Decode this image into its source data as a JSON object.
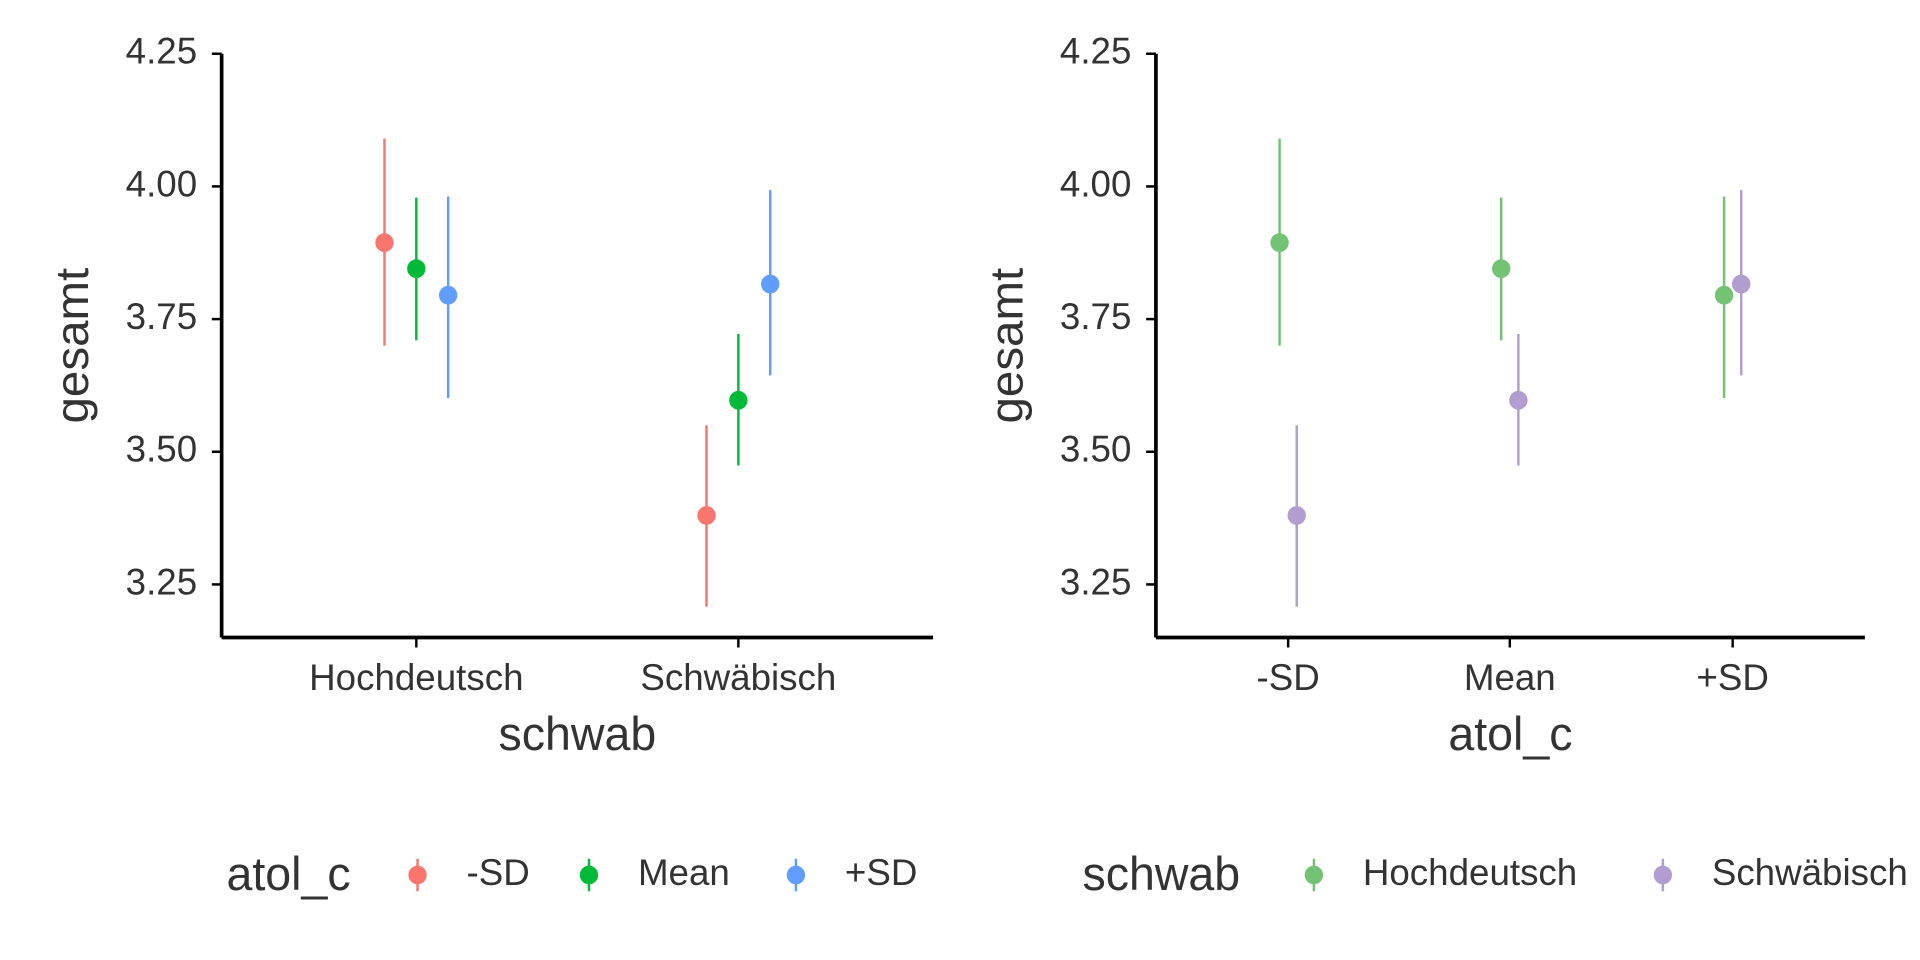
{
  "chart_data": [
    {
      "type": "pointrange",
      "x_label": "schwab",
      "y_label": "gesamt",
      "legend_title": "atol_c",
      "categories": [
        "Hochdeutsch",
        "Schwäbisch"
      ],
      "series": [
        {
          "name": "-SD",
          "color": "#F8766D",
          "values": [
            3.894,
            3.38
          ],
          "lower": [
            3.7,
            3.208
          ],
          "upper": [
            4.09,
            3.55
          ]
        },
        {
          "name": "Mean",
          "color": "#00BA38",
          "values": [
            3.845,
            3.597
          ],
          "lower": [
            3.71,
            3.474
          ],
          "upper": [
            3.979,
            3.722
          ]
        },
        {
          "name": "+SD",
          "color": "#619CFF",
          "values": [
            3.795,
            3.816
          ],
          "lower": [
            3.601,
            3.644
          ],
          "upper": [
            3.981,
            3.993
          ]
        }
      ],
      "ylim": [
        3.15,
        4.25
      ],
      "yticks": [
        4.25,
        {
          "value": 4.0,
          "label": "4.00"
        },
        3.75,
        {
          "value": 3.5,
          "label": "3.50"
        },
        3.25
      ]
    },
    {
      "type": "pointrange",
      "x_label": "atol_c",
      "y_label": "gesamt",
      "legend_title": "schwab",
      "categories": [
        "-SD",
        "Mean",
        "+SD"
      ],
      "series": [
        {
          "name": "Hochdeutsch",
          "color": "#74C274",
          "values": [
            3.894,
            3.845,
            3.795
          ],
          "lower": [
            3.7,
            3.71,
            3.601
          ],
          "upper": [
            4.09,
            3.979,
            3.981
          ]
        },
        {
          "name": "Schwäbisch",
          "color": "#B29DD0",
          "values": [
            3.38,
            3.597,
            3.816
          ],
          "lower": [
            3.208,
            3.474,
            3.644
          ],
          "upper": [
            3.55,
            3.722,
            3.993
          ]
        }
      ],
      "ylim": [
        3.15,
        4.25
      ],
      "yticks": [
        4.25,
        {
          "value": 4.0,
          "label": "4.00"
        },
        3.75,
        {
          "value": 3.5,
          "label": "3.50"
        },
        3.25
      ]
    }
  ]
}
